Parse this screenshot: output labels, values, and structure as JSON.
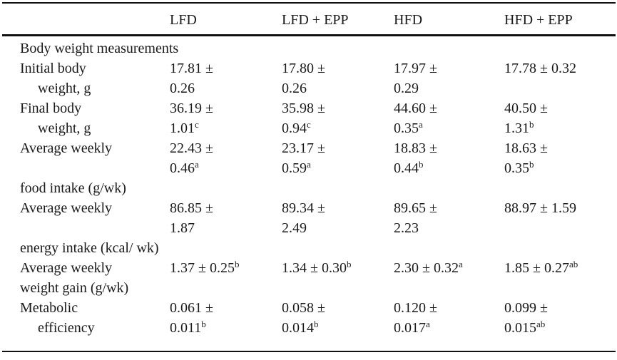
{
  "colors": {
    "background": "#ffffff",
    "text": "#1a1a1a",
    "rule": "#111111"
  },
  "table": {
    "columns": [
      "",
      "LFD",
      "LFD + EPP",
      "HFD",
      "HFD + EPP"
    ],
    "rows": [
      {
        "section": "Body weight measurements"
      },
      {
        "label": [
          "Initial body",
          "     weight, g"
        ],
        "cells": [
          [
            "17.81 ±",
            "0.26"
          ],
          [
            "17.80 ±",
            "0.26"
          ],
          [
            "17.97 ±",
            "0.29"
          ],
          [
            "17.78 ± 0.32"
          ]
        ]
      },
      {
        "label": [
          "Final body",
          "     weight, g"
        ],
        "cells": [
          [
            "36.19 ±",
            "1.01^c"
          ],
          [
            "35.98 ±",
            "0.94^c"
          ],
          [
            "44.60 ±",
            "0.35^a"
          ],
          [
            "40.50 ±",
            "1.31^b"
          ]
        ]
      },
      {
        "label": [
          "Average weekly",
          "",
          "food intake (g/wk)"
        ],
        "cells": [
          [
            "22.43 ±",
            "0.46^a"
          ],
          [
            "23.17 ±",
            "0.59^a"
          ],
          [
            "18.83 ±",
            "0.44^b"
          ],
          [
            "18.63 ±",
            "0.35^b"
          ]
        ]
      },
      {
        "label": [
          "Average weekly",
          "",
          "energy intake (kcal/ wk)"
        ],
        "cells": [
          [
            "86.85 ±",
            "1.87"
          ],
          [
            "89.34 ±",
            "2.49"
          ],
          [
            "89.65 ±",
            "2.23"
          ],
          [
            "88.97 ± 1.59"
          ]
        ]
      },
      {
        "label": [
          "Average weekly",
          "weight gain (g/wk)"
        ],
        "cells": [
          [
            "1.37 ± 0.25^b"
          ],
          [
            "1.34 ± 0.30^b"
          ],
          [
            "2.30 ± 0.32^a"
          ],
          [
            "1.85 ± 0.27^ab"
          ]
        ]
      },
      {
        "label": [
          "Metabolic",
          "     efficiency"
        ],
        "cells": [
          [
            "0.061 ±",
            "0.011^b"
          ],
          [
            "0.058 ±",
            "0.014^b"
          ],
          [
            "0.120 ±",
            "0.017^a"
          ],
          [
            "0.099 ±",
            "0.015^ab"
          ]
        ]
      }
    ]
  }
}
